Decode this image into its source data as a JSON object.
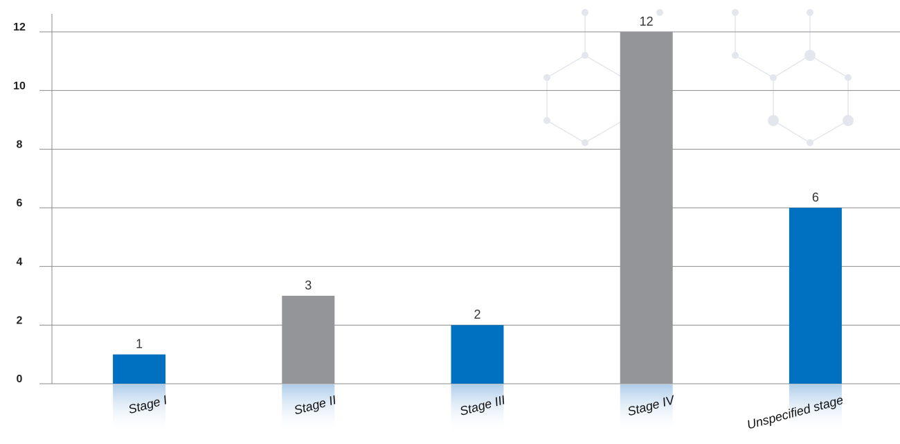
{
  "chart_data": {
    "type": "bar",
    "categories": [
      "Stage I",
      "Stage II",
      "Stage III",
      "Stage IV",
      "Unspecified stage"
    ],
    "values": [
      1,
      3,
      2,
      12,
      6
    ],
    "colors": [
      "#0070c0",
      "#939598",
      "#0070c0",
      "#939598",
      "#0070c0"
    ],
    "ylim": [
      0,
      12
    ],
    "yticks": [
      0,
      2,
      4,
      6,
      8,
      10,
      12
    ],
    "grid": true
  }
}
